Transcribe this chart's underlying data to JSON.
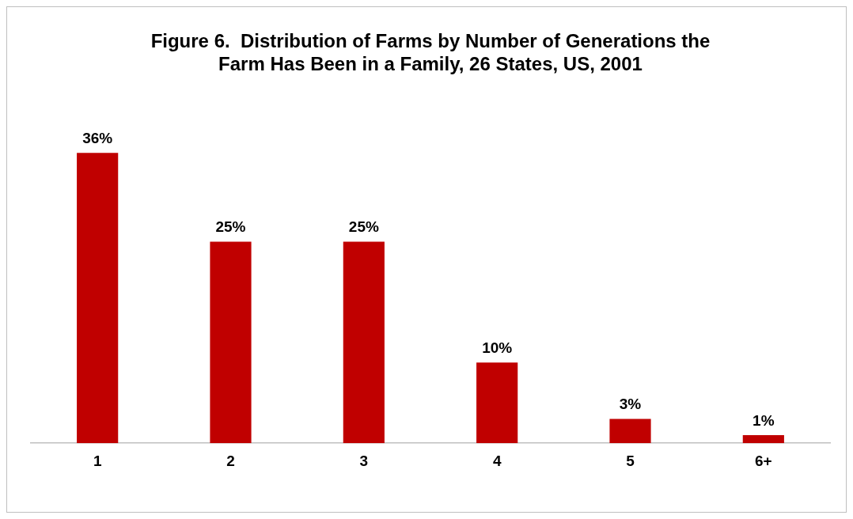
{
  "chart_data": {
    "type": "bar",
    "title": "Figure 6.  Distribution of Farms by Number of Generations the\nFarm Has Been in a Family, 26 States, US, 2001",
    "categories": [
      "1",
      "2",
      "3",
      "4",
      "5",
      "6+"
    ],
    "values": [
      36,
      25,
      25,
      10,
      3,
      1
    ],
    "value_labels": [
      "36%",
      "25%",
      "25%",
      "10%",
      "3%",
      "1%"
    ],
    "color": "#c00000",
    "grid": false,
    "legend": false
  }
}
